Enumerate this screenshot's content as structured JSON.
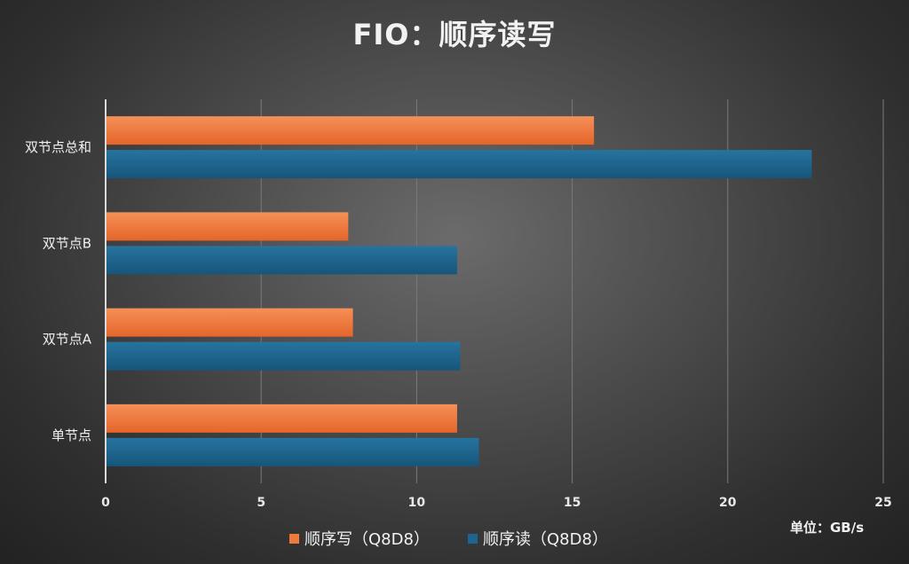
{
  "title": "FIO：顺序读写",
  "unit_label": "单位：GB/s",
  "colors": {
    "write": "#f07a3c",
    "read": "#1d6590"
  },
  "chart_data": {
    "type": "bar",
    "orientation": "horizontal",
    "title": "FIO：顺序读写",
    "categories": [
      "双节点总和",
      "双节点B",
      "双节点A",
      "单节点"
    ],
    "series": [
      {
        "name": "顺序写（Q8D8）",
        "values": [
          15.7,
          7.8,
          7.95,
          11.3
        ]
      },
      {
        "name": "顺序读（Q8D8）",
        "values": [
          22.7,
          11.3,
          11.4,
          12.0
        ]
      }
    ],
    "xlim": [
      0,
      25
    ],
    "xticks": [
      0,
      5,
      10,
      15,
      20,
      25
    ],
    "grid": true,
    "legend_position": "bottom"
  }
}
